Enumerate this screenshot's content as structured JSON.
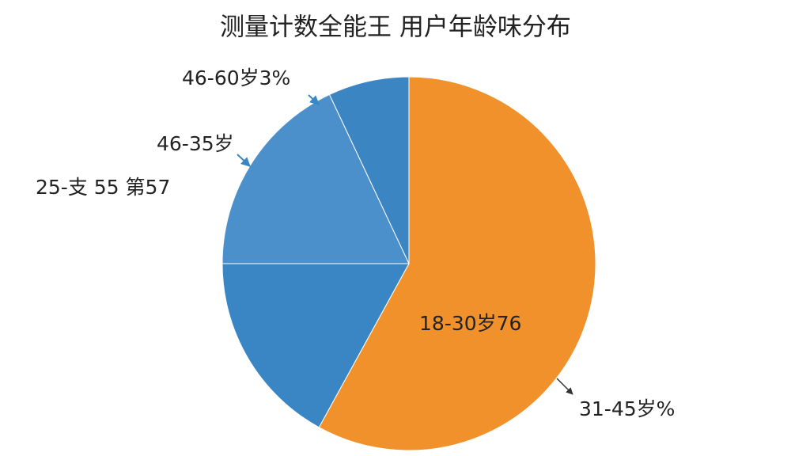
{
  "chart_data": {
    "type": "pie",
    "title": "测量计数全能王   用户年龄味分布",
    "categories": [
      "18-30岁76",
      "25-支 55 第57",
      "46-35岁",
      "46-60岁3%"
    ],
    "values": [
      58,
      17,
      18,
      7
    ],
    "colors": [
      "#f0912c",
      "#3a86c5",
      "#4b90cb",
      "#3b85c3"
    ],
    "annotation": "31-45岁%"
  }
}
